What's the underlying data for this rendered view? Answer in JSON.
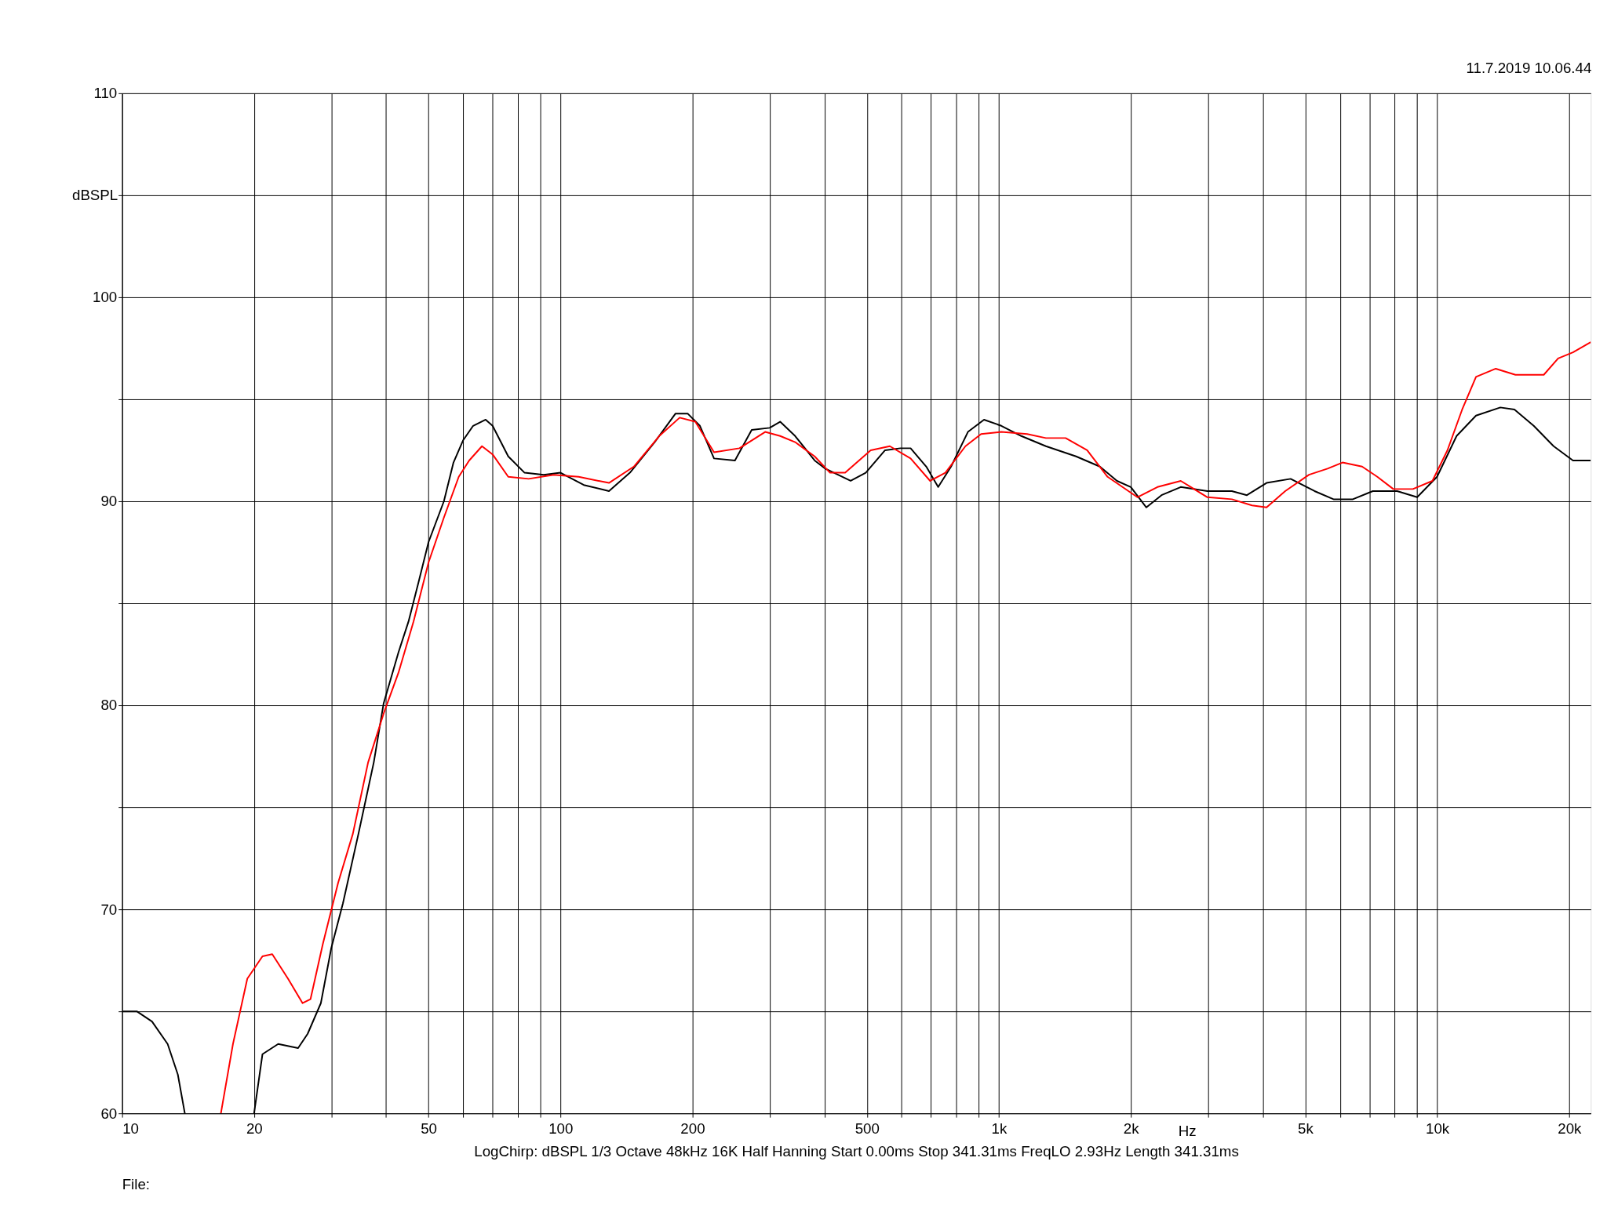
{
  "chart_data": {
    "type": "line",
    "xlabel": "Hz",
    "ylabel": "dBSPL",
    "log": "x",
    "grid": true,
    "line_style": "solid",
    "marker": "none",
    "xlim": [
      10,
      22400
    ],
    "ylim": [
      60,
      110
    ],
    "xticks": [
      10,
      20,
      {
        "value": 30,
        "label": null
      },
      {
        "value": 40,
        "label": null
      },
      50,
      {
        "value": 60,
        "label": null
      },
      {
        "value": 70,
        "label": null
      },
      {
        "value": 80,
        "label": null
      },
      {
        "value": 90,
        "label": null
      },
      100,
      200,
      {
        "value": 300,
        "label": null
      },
      {
        "value": 400,
        "label": null
      },
      500,
      {
        "value": 600,
        "label": null
      },
      {
        "value": 700,
        "label": null
      },
      {
        "value": 800,
        "label": null
      },
      {
        "value": 900,
        "label": null
      },
      {
        "value": 1000,
        "label": "1k"
      },
      {
        "value": 2000,
        "label": "2k"
      },
      {
        "value": 3000,
        "label": null
      },
      {
        "value": 4000,
        "label": null
      },
      {
        "value": 5000,
        "label": "5k"
      },
      {
        "value": 6000,
        "label": null
      },
      {
        "value": 7000,
        "label": null
      },
      {
        "value": 8000,
        "label": null
      },
      {
        "value": 9000,
        "label": null
      },
      {
        "value": 10000,
        "label": "10k"
      },
      {
        "value": 20000,
        "label": "20k"
      }
    ],
    "yticks": [
      60,
      {
        "value": 65,
        "label": null
      },
      70,
      {
        "value": 75,
        "label": null
      },
      80,
      {
        "value": 85,
        "label": null
      },
      90,
      {
        "value": 95,
        "label": null
      },
      100,
      {
        "value": 105,
        "label": null
      },
      110
    ],
    "annotations": [
      "11.7.2019 10.06.44",
      "LogChirp:  dBSPL   1/3 Octave   48kHz   16K   Half Hanning   Start 0.00ms    Stop 341.31ms    FreqLO 2.93Hz    Length 341.31ms",
      "File:"
    ],
    "series": [
      {
        "color": "#000000",
        "x": [
          10,
          10.8,
          11.7,
          12.7,
          13.4,
          13.9,
          16,
          20,
          20.9,
          22.7,
          25.2,
          26.5,
          28.4,
          30,
          31.9,
          34.6,
          37.5,
          39.5,
          42.7,
          45,
          47.4,
          50,
          54.2,
          57,
          60,
          63.2,
          67.5,
          70,
          76,
          82.8,
          91.6,
          100,
          113,
          129,
          144,
          164,
          183,
          195,
          208,
          224,
          250,
          273,
          300,
          317,
          343,
          380,
          402,
          459,
          497,
          550,
          596,
          629,
          683,
          727,
          778,
          850,
          925,
          1013,
          1125,
          1280,
          1500,
          1700,
          1860,
          2000,
          2170,
          2350,
          2600,
          2990,
          3400,
          3680,
          4080,
          4630,
          5250,
          5800,
          6420,
          7130,
          8100,
          9000,
          9990,
          11070,
          12260,
          13930,
          15000,
          16600,
          18430,
          20400,
          22400
        ],
        "values": [
          65.0,
          65.0,
          64.5,
          63.4,
          61.9,
          60,
          null,
          60,
          62.9,
          63.4,
          63.2,
          63.9,
          65.4,
          68.1,
          70.3,
          73.7,
          77.2,
          80.1,
          82.6,
          84.1,
          86,
          88,
          90,
          91.9,
          93,
          93.7,
          94,
          93.7,
          92.2,
          91.4,
          91.3,
          91.4,
          90.8,
          90.5,
          91.4,
          92.9,
          94.3,
          94.3,
          93.7,
          92.1,
          92,
          93.5,
          93.6,
          93.9,
          93.2,
          92,
          91.6,
          91,
          91.4,
          92.5,
          92.6,
          92.6,
          91.7,
          90.7,
          91.7,
          93.4,
          94,
          93.7,
          93.2,
          92.7,
          92.2,
          91.7,
          91,
          90.7,
          89.7,
          90.3,
          90.7,
          90.5,
          90.5,
          90.3,
          90.9,
          91.1,
          90.5,
          90.1,
          90.1,
          90.5,
          90.5,
          90.2,
          91.2,
          93.2,
          94.2,
          94.6,
          94.5,
          93.7,
          92.7,
          92.0,
          92.0
        ]
      },
      {
        "color": "#ff0000",
        "x": [
          16.8,
          17.9,
          19.3,
          20.9,
          22,
          23.9,
          25.8,
          26.9,
          28.7,
          31.1,
          33.6,
          36.4,
          39.5,
          42.7,
          46.2,
          50,
          54.2,
          58.6,
          61.9,
          66.2,
          70,
          76,
          84.6,
          96.5,
          110,
          129,
          147,
          168,
          187,
          203,
          224,
          256,
          293,
          317,
          343,
          380,
          412,
          446,
          510,
          564,
          629,
          697,
          755,
          839,
          911,
          1013,
          1160,
          1280,
          1420,
          1590,
          1770,
          2070,
          2300,
          2600,
          2990,
          3400,
          3780,
          4080,
          4500,
          5100,
          5620,
          6080,
          6740,
          7300,
          7940,
          8800,
          9750,
          10550,
          11400,
          12260,
          13600,
          15080,
          17500,
          18870,
          20400,
          22400
        ],
        "values": [
          60,
          63.4,
          66.6,
          67.7,
          67.8,
          66.6,
          65.4,
          65.6,
          68.3,
          71.3,
          73.7,
          77.2,
          79.6,
          81.6,
          84.1,
          87,
          89.2,
          91.2,
          92.0,
          92.7,
          92.3,
          91.2,
          91.1,
          91.3,
          91.2,
          90.9,
          91.7,
          93.2,
          94.1,
          93.9,
          92.4,
          92.6,
          93.4,
          93.2,
          92.9,
          92.2,
          91.4,
          91.4,
          92.5,
          92.7,
          92.1,
          91,
          91.4,
          92.7,
          93.3,
          93.4,
          93.3,
          93.1,
          93.1,
          92.5,
          91.2,
          90.2,
          90.7,
          91,
          90.2,
          90.1,
          89.8,
          89.7,
          90.5,
          91.3,
          91.6,
          91.9,
          91.7,
          91.2,
          90.6,
          90.6,
          91,
          92.5,
          94.5,
          96.1,
          96.5,
          96.2,
          96.2,
          97,
          97.3,
          97.8
        ]
      }
    ]
  }
}
